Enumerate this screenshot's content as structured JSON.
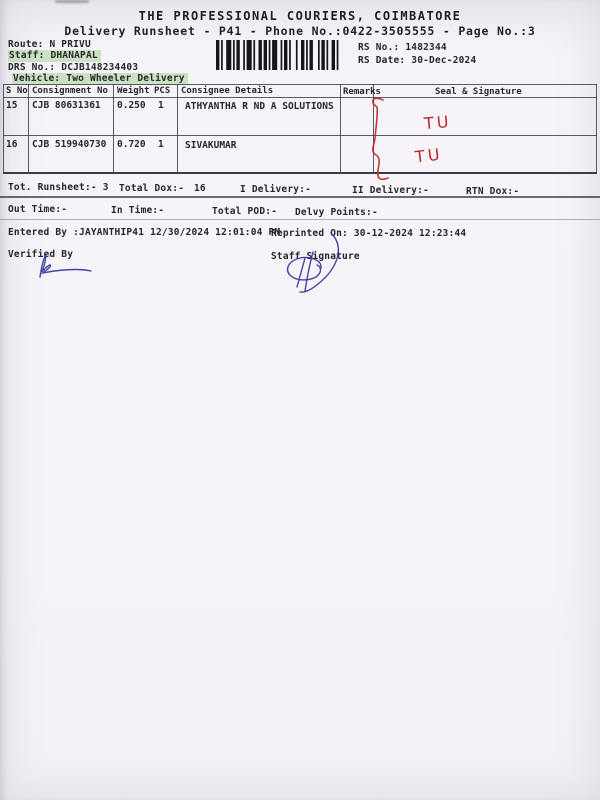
{
  "header": {
    "company": "THE PROFESSIONAL COURIERS, COIMBATORE",
    "subtitle": "Delivery Runsheet - P41 - Phone No.:0422-3505555 - Page No.:3"
  },
  "meta": {
    "route_label": "Route:",
    "route": "N PRIVU",
    "staff_label": "Staff:",
    "staff": "DHANAPAL",
    "drs_label": "DRS No.:",
    "drs": "DCJB148234403",
    "vehicle_label": "Vehicle:",
    "vehicle": "Two Wheeler Delivery",
    "rs_no_label": "RS No.:",
    "rs_no": "1482344",
    "rs_date_label": "RS Date:",
    "rs_date": "30-Dec-2024"
  },
  "table": {
    "headers": {
      "sno": "S No",
      "consignment": "Consignment No",
      "weight": "Weight",
      "pcs": "PCS",
      "consignee": "Consignee Details",
      "remarks": "Remarks",
      "seal": "Seal & Signature"
    },
    "rows": [
      {
        "sno": "15",
        "consignment": "CJB 80631361",
        "weight": "0.250",
        "pcs": "1",
        "consignee": "ATHYANTHA R ND A SOLUTIONS",
        "remarks": "",
        "seal_annotation": "TU"
      },
      {
        "sno": "16",
        "consignment": "CJB 519940730",
        "weight": "0.720",
        "pcs": "1",
        "consignee": "SIVAKUMAR",
        "remarks": "",
        "seal_annotation": "TU"
      }
    ]
  },
  "totals": {
    "runsheet_label": "Tot. Runsheet:-",
    "runsheet_value": "3",
    "dox_label": "Total Dox:-",
    "dox_value": "16",
    "i_delivery_label": "I Delivery:-",
    "ii_delivery_label": "II Delivery:-",
    "rtn_label": "RTN Dox:-"
  },
  "times": {
    "out_label": "Out Time:-",
    "in_label": "In Time:-",
    "pod_label": "Total POD:-",
    "delvy_label": "Delvy Points:-"
  },
  "footer": {
    "entered_by": "Entered By :JAYANTHIP41 12/30/2024 12:01:04 PM",
    "reprinted": "Reprinted On: 30-12-2024 12:23:44",
    "verified_label": "Verified By",
    "staff_sig_label": "Staff Signature"
  },
  "colors": {
    "red_ink": "#c22525",
    "blue_ink": "#32329a",
    "highlight_green": "#a8d496",
    "paper": "#f5f3f7"
  }
}
